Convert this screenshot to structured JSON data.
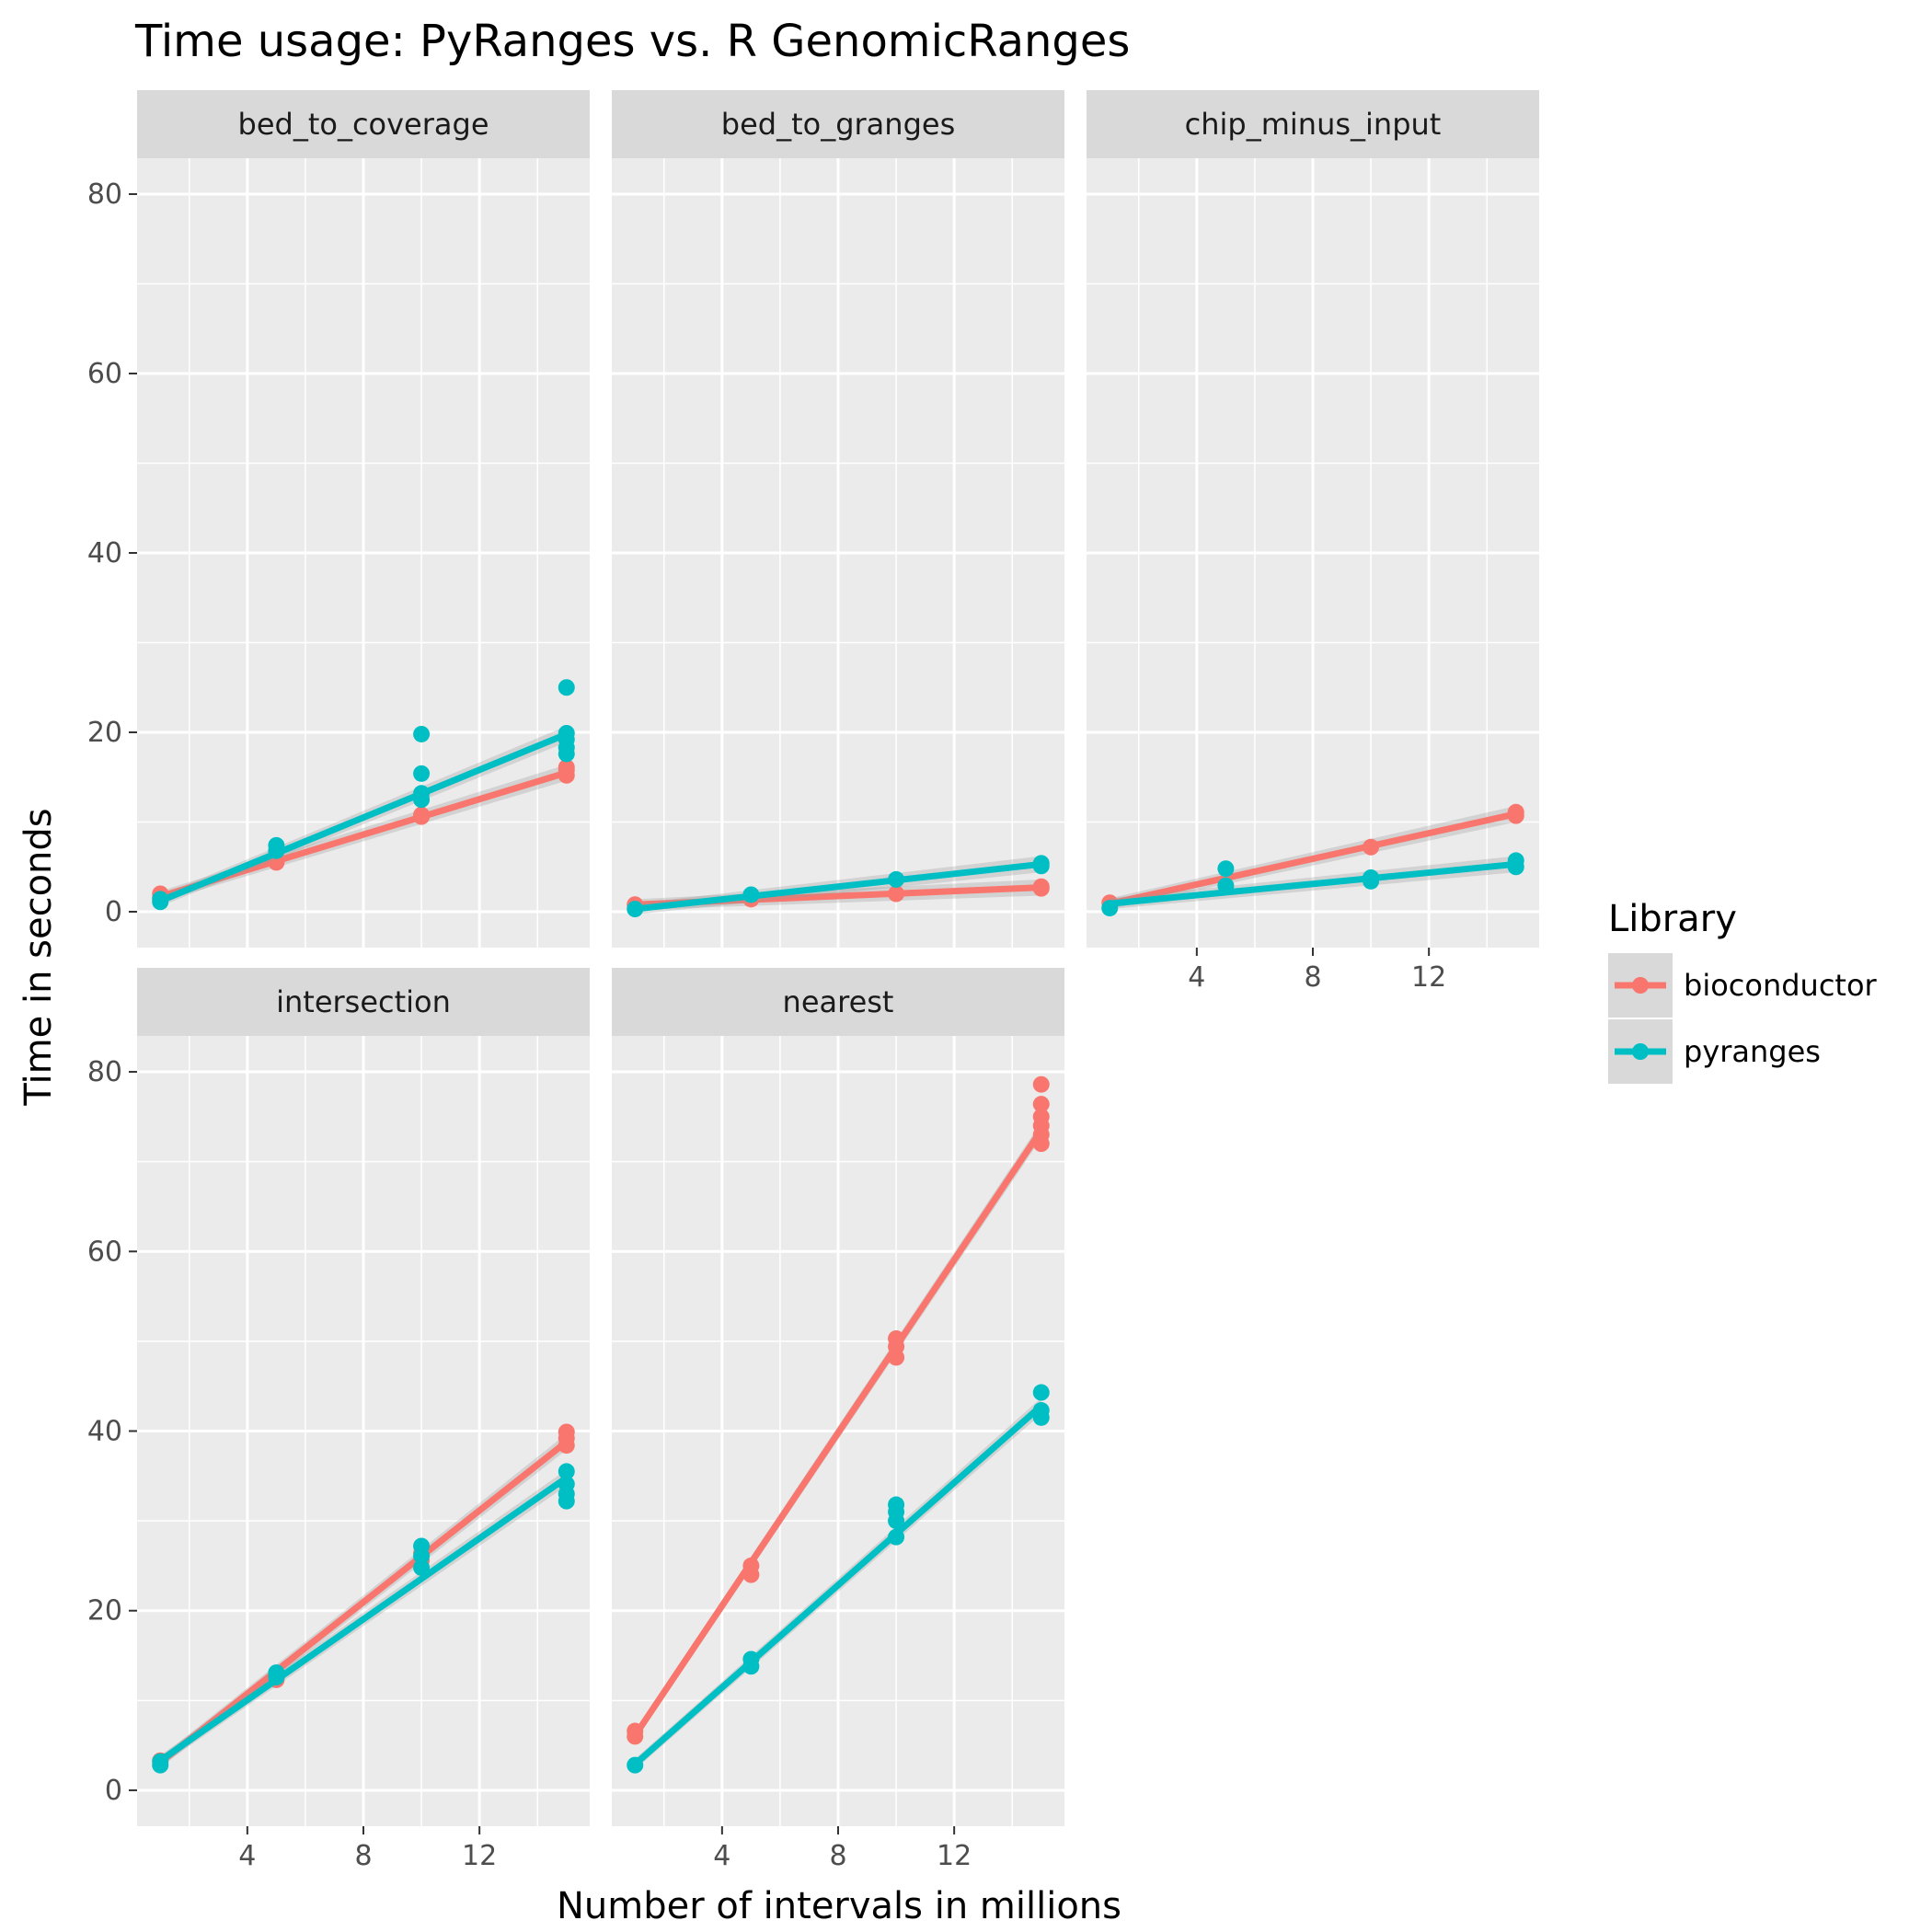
{
  "chart_data": {
    "type": "scatter",
    "title": "Time usage: PyRanges vs. R GenomicRanges",
    "xlabel": "Number of intervals in millions",
    "ylabel": "Time in seconds",
    "xlim": [
      0.2,
      15.8
    ],
    "ylim": [
      -4,
      84
    ],
    "x_ticks": [
      4,
      8,
      12
    ],
    "y_ticks": [
      0,
      20,
      40,
      60,
      80
    ],
    "grid": true,
    "legend": {
      "title": "Library",
      "position": "right",
      "entries": [
        "bioconductor",
        "pyranges"
      ]
    },
    "colors": {
      "bioconductor": "#f8766d",
      "pyranges": "#00bfc4",
      "panel_bg": "#ebebeb",
      "strip_bg": "#d9d9d9",
      "grid": "#ffffff"
    },
    "panels": [
      {
        "name": "bed_to_coverage",
        "series": [
          {
            "name": "bioconductor",
            "line": [
              [
                1,
                1.7
              ],
              [
                15,
                15.5
              ]
            ],
            "points": [
              [
                1,
                2.0
              ],
              [
                1,
                1.6
              ],
              [
                5,
                5.5
              ],
              [
                5,
                5.9
              ],
              [
                10,
                10.6
              ],
              [
                10,
                10.8
              ],
              [
                15,
                15.2
              ],
              [
                15,
                15.8
              ],
              [
                15,
                16.1
              ]
            ]
          },
          {
            "name": "pyranges",
            "line": [
              [
                1,
                1.2
              ],
              [
                15,
                19.8
              ]
            ],
            "points": [
              [
                1,
                1.1
              ],
              [
                1,
                1.4
              ],
              [
                5,
                6.8
              ],
              [
                5,
                7.4
              ],
              [
                10,
                12.5
              ],
              [
                10,
                13.2
              ],
              [
                10,
                15.4
              ],
              [
                10,
                19.8
              ],
              [
                15,
                17.6
              ],
              [
                15,
                18.3
              ],
              [
                15,
                19.2
              ],
              [
                15,
                19.9
              ],
              [
                15,
                25.0
              ]
            ]
          }
        ]
      },
      {
        "name": "bed_to_granges",
        "series": [
          {
            "name": "bioconductor",
            "line": [
              [
                1,
                0.8
              ],
              [
                15,
                2.7
              ]
            ],
            "points": [
              [
                1,
                0.8
              ],
              [
                5,
                1.4
              ],
              [
                10,
                2.0
              ],
              [
                15,
                2.6
              ],
              [
                15,
                2.8
              ]
            ]
          },
          {
            "name": "pyranges",
            "line": [
              [
                1,
                0.3
              ],
              [
                15,
                5.3
              ]
            ],
            "points": [
              [
                1,
                0.3
              ],
              [
                5,
                1.9
              ],
              [
                10,
                3.6
              ],
              [
                15,
                5.1
              ],
              [
                15,
                5.4
              ]
            ]
          }
        ]
      },
      {
        "name": "chip_minus_input",
        "series": [
          {
            "name": "bioconductor",
            "line": [
              [
                1,
                0.9
              ],
              [
                15,
                10.9
              ]
            ],
            "points": [
              [
                1,
                1.0
              ],
              [
                10,
                7.2
              ],
              [
                15,
                10.7
              ],
              [
                15,
                11.1
              ]
            ]
          },
          {
            "name": "pyranges",
            "line": [
              [
                1,
                0.9
              ],
              [
                15,
                5.3
              ]
            ],
            "points": [
              [
                1,
                0.4
              ],
              [
                5,
                2.9
              ],
              [
                5,
                4.8
              ],
              [
                10,
                3.4
              ],
              [
                10,
                3.8
              ],
              [
                15,
                5.0
              ],
              [
                15,
                5.7
              ]
            ]
          }
        ]
      },
      {
        "name": "intersection",
        "series": [
          {
            "name": "bioconductor",
            "line": [
              [
                1,
                3.1
              ],
              [
                15,
                38.8
              ]
            ],
            "points": [
              [
                1,
                3.3
              ],
              [
                5,
                12.3
              ],
              [
                5,
                12.8
              ],
              [
                10,
                25.6
              ],
              [
                10,
                26.4
              ],
              [
                15,
                38.4
              ],
              [
                15,
                39.2
              ],
              [
                15,
                39.9
              ]
            ]
          },
          {
            "name": "pyranges",
            "line": [
              [
                1,
                3.3
              ],
              [
                15,
                34.8
              ]
            ],
            "points": [
              [
                1,
                2.8
              ],
              [
                1,
                3.2
              ],
              [
                5,
                12.6
              ],
              [
                5,
                13.1
              ],
              [
                10,
                24.8
              ],
              [
                10,
                26.1
              ],
              [
                10,
                27.2
              ],
              [
                15,
                32.2
              ],
              [
                15,
                33.0
              ],
              [
                15,
                34.1
              ],
              [
                15,
                35.5
              ]
            ]
          }
        ]
      },
      {
        "name": "nearest",
        "series": [
          {
            "name": "bioconductor",
            "line": [
              [
                1,
                6.1
              ],
              [
                15,
                73.5
              ]
            ],
            "points": [
              [
                1,
                6.0
              ],
              [
                1,
                6.6
              ],
              [
                5,
                24.0
              ],
              [
                5,
                25.0
              ],
              [
                10,
                48.2
              ],
              [
                10,
                49.4
              ],
              [
                10,
                50.3
              ],
              [
                15,
                72.0
              ],
              [
                15,
                73.0
              ],
              [
                15,
                74.0
              ],
              [
                15,
                75.0
              ],
              [
                15,
                76.4
              ],
              [
                15,
                78.6
              ]
            ]
          },
          {
            "name": "pyranges",
            "line": [
              [
                1,
                2.9
              ],
              [
                15,
                42.8
              ]
            ],
            "points": [
              [
                1,
                2.8
              ],
              [
                5,
                13.8
              ],
              [
                5,
                14.6
              ],
              [
                10,
                28.2
              ],
              [
                10,
                30.0
              ],
              [
                10,
                31.0
              ],
              [
                10,
                31.8
              ],
              [
                15,
                41.5
              ],
              [
                15,
                42.3
              ],
              [
                15,
                44.3
              ]
            ]
          }
        ]
      }
    ]
  }
}
